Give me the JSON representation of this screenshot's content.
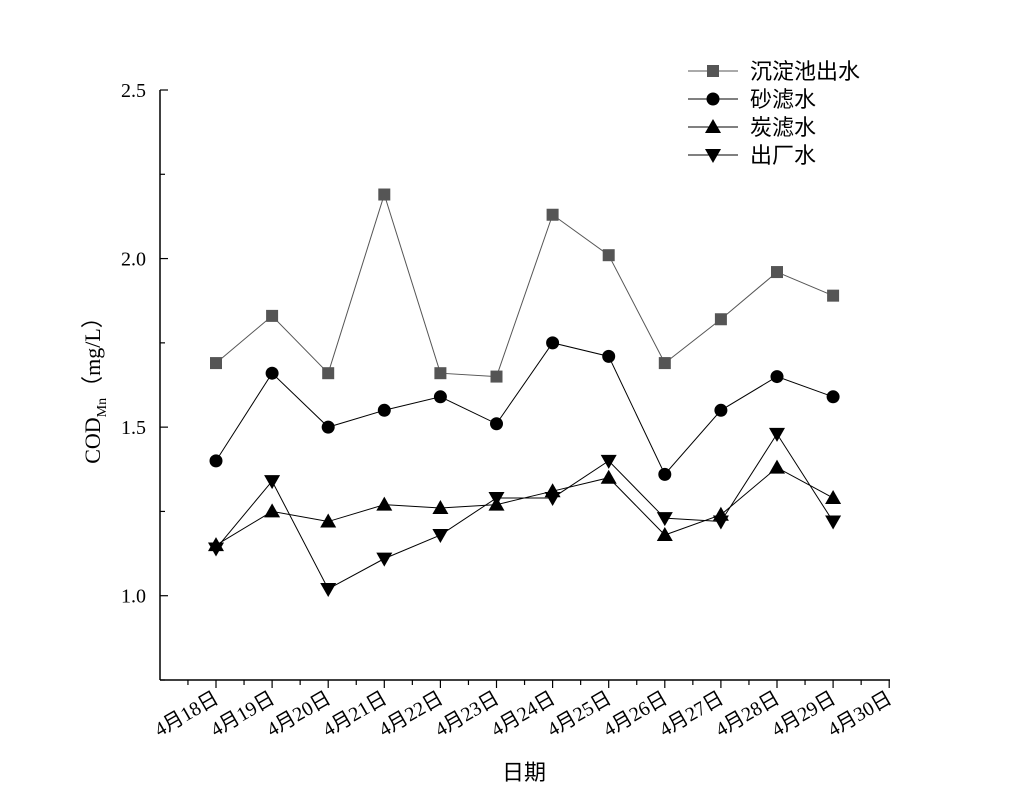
{
  "chart_data": {
    "type": "line",
    "title": "",
    "xlabel": "日期",
    "ylabel_main": "COD",
    "ylabel_sub": "Mn",
    "ylabel_unit": "（mg/L）",
    "ylim": [
      0.75,
      2.5
    ],
    "yticks": [
      "1.0",
      "1.5",
      "2.0",
      "2.5"
    ],
    "ytick_values": [
      1.0,
      1.5,
      2.0,
      2.5
    ],
    "categories": [
      "4月18日",
      "4月19日",
      "4月20日",
      "4月21日",
      "4月22日",
      "4月23日",
      "4月24日",
      "4月25日",
      "4月26日",
      "4月27日",
      "4月28日",
      "4月29日",
      "4月30日"
    ],
    "legend_position": "top-right",
    "grid": false,
    "series": [
      {
        "name": "沉淀池出水",
        "marker": "square",
        "color": "#555555",
        "values": [
          1.69,
          1.83,
          1.66,
          2.19,
          1.66,
          1.65,
          2.13,
          2.01,
          1.69,
          1.82,
          1.96,
          1.89,
          null
        ]
      },
      {
        "name": "砂滤水",
        "marker": "circle",
        "color": "#000000",
        "values": [
          1.4,
          1.66,
          1.5,
          1.55,
          1.59,
          1.51,
          1.75,
          1.71,
          1.36,
          1.55,
          1.65,
          1.59,
          null
        ]
      },
      {
        "name": "炭滤水",
        "marker": "triangle-up",
        "color": "#000000",
        "values": [
          1.15,
          1.25,
          1.22,
          1.27,
          1.26,
          1.27,
          1.31,
          1.35,
          1.18,
          1.24,
          1.38,
          1.29,
          null
        ]
      },
      {
        "name": "出厂水",
        "marker": "triangle-down",
        "color": "#000000",
        "values": [
          1.14,
          1.34,
          1.02,
          1.11,
          1.18,
          1.29,
          1.29,
          1.4,
          1.23,
          1.22,
          1.48,
          1.22,
          null
        ]
      }
    ]
  }
}
